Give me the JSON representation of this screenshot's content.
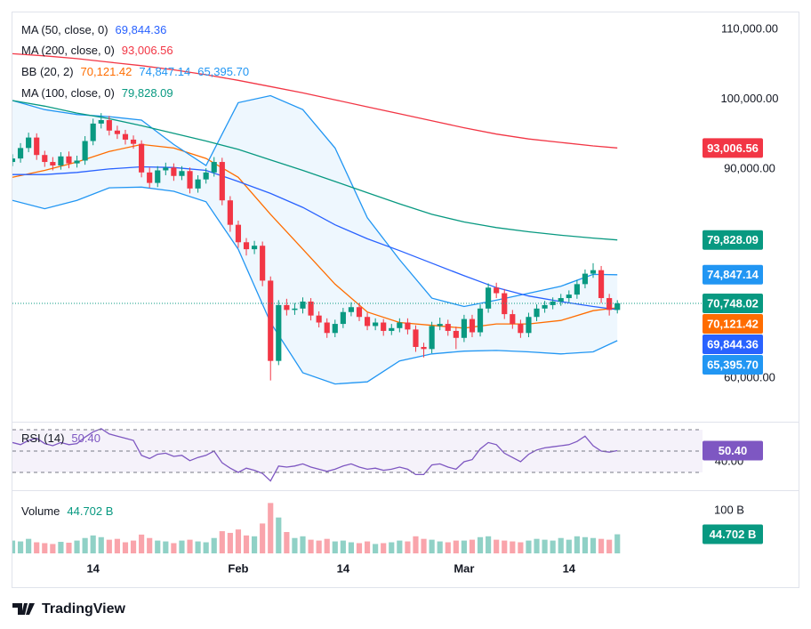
{
  "chart_data": {
    "type": "candlestick",
    "open": [
      91000,
      91500,
      93000,
      94500,
      92000,
      91000,
      90500,
      91800,
      90800,
      91200,
      94000,
      96500,
      97000,
      95500,
      95000,
      94200,
      93600,
      89500,
      88000,
      89800,
      90200,
      89000,
      89700,
      87200,
      88500,
      89500,
      91000,
      85500,
      82000,
      79500,
      78500,
      79000,
      74000,
      62500,
      70500,
      69800,
      70000,
      71000,
      69000,
      68000,
      66500,
      67800,
      69500,
      70200,
      68800,
      67500,
      68000,
      66800,
      67200,
      68000,
      67000,
      64500,
      64200,
      67500,
      67800,
      66800,
      65800,
      68500,
      66600,
      70000,
      73000,
      72200,
      69200,
      67800,
      66500,
      68800,
      70000,
      70500,
      71000,
      71500,
      72000,
      73500,
      75000,
      75500,
      71500,
      69800
    ],
    "high": [
      92100,
      93700,
      95200,
      95100,
      92600,
      91700,
      92400,
      92500,
      91900,
      94700,
      97200,
      98000,
      97600,
      96200,
      95600,
      94800,
      94100,
      90200,
      90400,
      90900,
      90800,
      90400,
      90200,
      89100,
      90100,
      91700,
      91600,
      86100,
      82600,
      80100,
      79700,
      79600,
      74600,
      71200,
      71400,
      70800,
      71600,
      71500,
      69600,
      68600,
      68400,
      70100,
      70900,
      70800,
      69400,
      68600,
      68500,
      67800,
      68600,
      68600,
      67600,
      65100,
      68100,
      68700,
      68400,
      67400,
      69100,
      69100,
      70600,
      73600,
      73700,
      72800,
      69800,
      68400,
      69400,
      70600,
      71100,
      71600,
      72100,
      72600,
      74100,
      75600,
      76500,
      76100,
      72100,
      71200
    ],
    "low": [
      90400,
      90900,
      92400,
      91300,
      90300,
      89800,
      89900,
      90100,
      90200,
      90600,
      93400,
      95800,
      94800,
      94300,
      93500,
      92900,
      88800,
      87300,
      87400,
      89100,
      88300,
      88400,
      86500,
      86600,
      87900,
      88900,
      84800,
      81000,
      78700,
      77600,
      77800,
      73200,
      59700,
      61900,
      69000,
      69100,
      69300,
      68300,
      67300,
      65800,
      65900,
      67200,
      68900,
      68200,
      66900,
      66900,
      66100,
      66200,
      66600,
      66300,
      63800,
      63000,
      63600,
      66900,
      66100,
      64200,
      65200,
      65900,
      66000,
      69400,
      71500,
      68500,
      67100,
      65800,
      65900,
      68200,
      69400,
      69900,
      70400,
      70900,
      71400,
      72900,
      74400,
      70800,
      69000,
      69300
    ],
    "close": [
      91500,
      93000,
      94500,
      92000,
      91000,
      90500,
      91800,
      90800,
      91200,
      94000,
      96500,
      97000,
      95500,
      95000,
      94200,
      93600,
      89500,
      88000,
      89800,
      90200,
      89000,
      89700,
      87200,
      88500,
      89500,
      91000,
      85500,
      82000,
      79500,
      78500,
      79000,
      74000,
      62500,
      70500,
      69800,
      70000,
      71000,
      69000,
      68000,
      66500,
      67800,
      69500,
      70200,
      68800,
      67500,
      68000,
      66800,
      67200,
      68000,
      67000,
      64500,
      64200,
      67500,
      67800,
      66800,
      65800,
      68500,
      66600,
      70000,
      73000,
      72200,
      69200,
      67800,
      66500,
      68800,
      70000,
      70500,
      71000,
      71500,
      72000,
      73500,
      75000,
      75500,
      71500,
      69800,
      70748.02
    ],
    "volume": [
      30,
      28,
      34,
      26,
      24,
      22,
      27,
      25,
      30,
      36,
      42,
      38,
      32,
      34,
      26,
      30,
      44,
      36,
      30,
      28,
      24,
      30,
      32,
      28,
      26,
      36,
      52,
      48,
      56,
      42,
      40,
      70,
      118,
      84,
      50,
      36,
      40,
      32,
      30,
      34,
      28,
      30,
      26,
      24,
      28,
      22,
      24,
      26,
      30,
      28,
      40,
      34,
      32,
      28,
      26,
      30,
      30,
      32,
      38,
      40,
      32,
      30,
      28,
      26,
      30,
      34,
      32,
      30,
      36,
      32,
      40,
      38,
      36,
      34,
      32,
      44.702
    ],
    "up_color": "#089981",
    "down_color": "#f23645",
    "xlim": [
      -0.44,
      85.56
    ],
    "xticks": [
      {
        "value": 10,
        "label": "14"
      },
      {
        "value": 28,
        "label": "Feb"
      },
      {
        "value": 41,
        "label": "14"
      },
      {
        "value": 56,
        "label": "Mar"
      },
      {
        "value": 69,
        "label": "14"
      }
    ],
    "ylim": [
      54300,
      112420
    ],
    "yticks": [
      {
        "value": 60000,
        "label": "60,000.00"
      },
      {
        "value": 90000,
        "label": "90,000.00"
      },
      {
        "value": 100000,
        "label": "100,000.00"
      },
      {
        "value": 110000,
        "label": "110,000.00"
      }
    ],
    "last_price_label": "70,748.02",
    "overlays": [
      {
        "name": "MA (50, close, 0)",
        "color": "#2962ff",
        "x": [
          0,
          4,
          8,
          12,
          16,
          20,
          24,
          28,
          32,
          36,
          40,
          44,
          48,
          52,
          56,
          60,
          64,
          68,
          72,
          75
        ],
        "values": [
          89200,
          89200,
          89500,
          90000,
          90300,
          90200,
          89800,
          88200,
          86500,
          84500,
          82000,
          80000,
          78300,
          76500,
          74700,
          73000,
          71800,
          71000,
          70300,
          69844.36
        ],
        "value_label": "69,844.36"
      },
      {
        "name": "MA (200, close, 0)",
        "color": "#f23645",
        "x": [
          0,
          4,
          8,
          12,
          16,
          20,
          24,
          28,
          32,
          36,
          40,
          44,
          48,
          52,
          56,
          60,
          64,
          68,
          72,
          75
        ],
        "values": [
          106500,
          106200,
          105800,
          105300,
          104800,
          104200,
          103500,
          102700,
          101800,
          100900,
          99900,
          98900,
          97900,
          96900,
          95900,
          95000,
          94300,
          93800,
          93300,
          93006.56
        ],
        "value_label": "93,006.56"
      },
      {
        "name": "MA (100, close, 0)",
        "color": "#089981",
        "x": [
          0,
          4,
          8,
          12,
          16,
          20,
          24,
          28,
          32,
          36,
          40,
          44,
          48,
          52,
          56,
          60,
          64,
          68,
          72,
          75
        ],
        "values": [
          99800,
          99000,
          98000,
          97200,
          96200,
          95100,
          94000,
          92800,
          91300,
          89800,
          88200,
          86600,
          85000,
          83500,
          82400,
          81600,
          81000,
          80500,
          80100,
          79828.09
        ],
        "value_label": "79,828.09"
      }
    ],
    "bb": {
      "name": "BB (20, 2)",
      "x": [
        0,
        4,
        8,
        12,
        16,
        20,
        24,
        28,
        32,
        36,
        40,
        44,
        48,
        52,
        56,
        60,
        64,
        68,
        72,
        75
      ],
      "fill": "#2196f3",
      "lines": [
        {
          "color": "#ff6d00",
          "values": [
            88800,
            89800,
            91000,
            92500,
            93500,
            93000,
            91500,
            88800,
            83500,
            78500,
            73500,
            69500,
            68000,
            67600,
            67200,
            67800,
            67800,
            68300,
            69700,
            70121.42
          ],
          "value_label": "70,121.42"
        },
        {
          "color": "#2196f3",
          "values": [
            99800,
            98500,
            97800,
            97500,
            97000,
            93500,
            90500,
            99500,
            100500,
            98500,
            93000,
            83000,
            77000,
            71500,
            70300,
            71200,
            72200,
            73200,
            74900,
            74847.14
          ],
          "value_label": "74,847.14"
        },
        {
          "color": "#2196f3",
          "values": [
            85500,
            84300,
            85500,
            87300,
            87400,
            86800,
            85300,
            78500,
            68000,
            60800,
            59200,
            59500,
            62500,
            63500,
            63900,
            64000,
            63800,
            63500,
            63800,
            65395.7
          ],
          "value_label": "65,395.70"
        }
      ]
    },
    "rsi": {
      "name": "RSI (14)",
      "color": "#7e57c2",
      "values": [
        58,
        56,
        60,
        62,
        57,
        55,
        58,
        56,
        57,
        63,
        68,
        71,
        66,
        64,
        62,
        60,
        46,
        43,
        47,
        48,
        45,
        46,
        41,
        44,
        46,
        50,
        39,
        34,
        30,
        34,
        32,
        29,
        22,
        36,
        35,
        36,
        38,
        35,
        33,
        31,
        33,
        36,
        38,
        35,
        33,
        34,
        32,
        33,
        35,
        33,
        28,
        28,
        37,
        38,
        35,
        33,
        40,
        42,
        52,
        58,
        56,
        48,
        44,
        40,
        47,
        51,
        53,
        54,
        55,
        56,
        59,
        64,
        55,
        50,
        49,
        50.4
      ],
      "value_label": "50.40",
      "ylim": [
        15.8,
        74.2
      ],
      "yticks": [
        {
          "value": 40,
          "label": "40.00"
        }
      ],
      "levels": [
        70,
        50,
        30
      ]
    },
    "volume_pane": {
      "name": "Volume",
      "value_label": "44.702 B",
      "ylim": [
        0,
        125
      ],
      "yticks": [
        {
          "value": 100,
          "label": "100 B"
        }
      ]
    },
    "branding": "TradingView"
  }
}
